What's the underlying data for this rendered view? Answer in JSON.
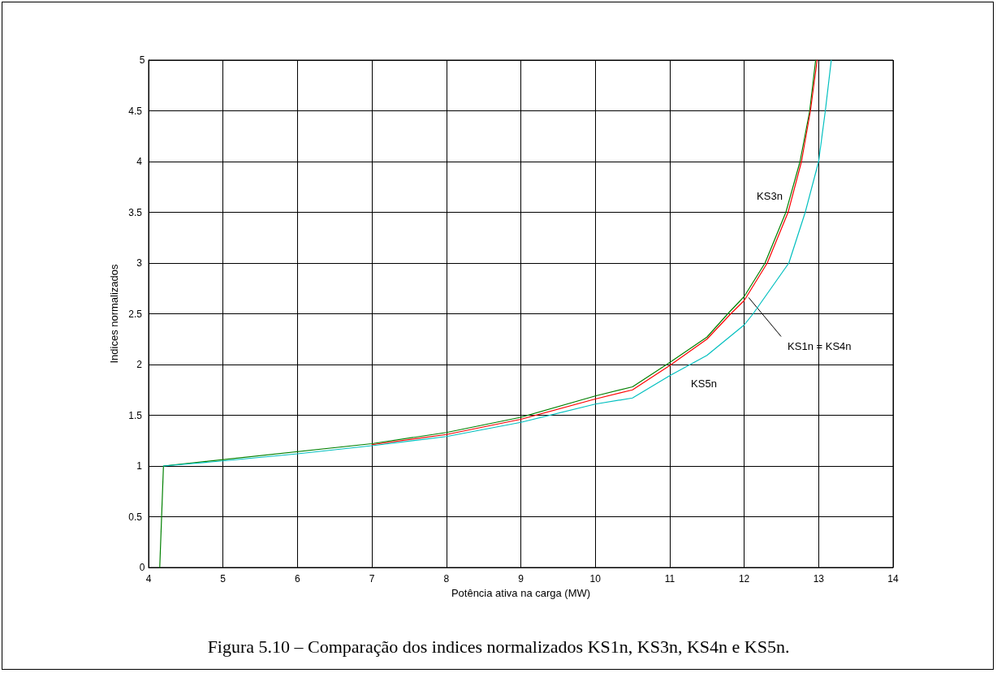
{
  "chart_data": {
    "type": "line",
    "xlabel": "Potência ativa na carga (MW)",
    "ylabel": "Indices normalizados",
    "xlim": [
      4,
      14
    ],
    "xticks": [
      4,
      5,
      6,
      7,
      8,
      9,
      10,
      11,
      12,
      13,
      14
    ],
    "ylim": [
      0,
      5
    ],
    "yticks": [
      0,
      0.5,
      1,
      1.5,
      2,
      2.5,
      3,
      3.5,
      4,
      4.5,
      5
    ],
    "grid": true,
    "marker": "none",
    "line_style": "solid",
    "series": [
      {
        "color": "#008000",
        "x": [
          4.15,
          4.2,
          7,
          8,
          9,
          10,
          10.5,
          11,
          11.5,
          11.78,
          12,
          12.28,
          12.56,
          12.75,
          12.88,
          12.96
        ],
        "values": [
          0,
          1,
          1.22,
          1.33,
          1.48,
          1.69,
          1.78,
          2.02,
          2.27,
          2.5,
          2.67,
          3,
          3.5,
          4,
          4.5,
          5
        ]
      },
      {
        "color": "#ff0000",
        "x": [
          7,
          8,
          9,
          10,
          10.5,
          11,
          11.5,
          11.82,
          12,
          12.31,
          12.59,
          12.77,
          12.89,
          12.98
        ],
        "values": [
          1.21,
          1.31,
          1.46,
          1.66,
          1.75,
          1.99,
          2.25,
          2.5,
          2.63,
          3,
          3.5,
          4,
          4.5,
          5
        ]
      },
      {
        "color": "#00bfbf",
        "x": [
          4.2,
          5,
          6,
          7,
          8,
          9,
          10,
          10.5,
          11,
          11.5,
          12,
          12.12,
          12.6,
          12.82,
          13.0,
          13.09,
          13.17
        ],
        "values": [
          1,
          1.05,
          1.12,
          1.2,
          1.29,
          1.43,
          1.61,
          1.67,
          1.89,
          2.09,
          2.39,
          2.5,
          3,
          3.5,
          4,
          4.5,
          5
        ]
      }
    ],
    "annotations": [
      "KS3n",
      {
        "text": "KS1n = KS4n",
        "x": 12.06,
        "y": 2.66
      },
      "KS5n",
      "Figura 5.10 – Comparação dos indices normalizados KS1n, KS3n, KS4n e KS5n."
    ]
  }
}
